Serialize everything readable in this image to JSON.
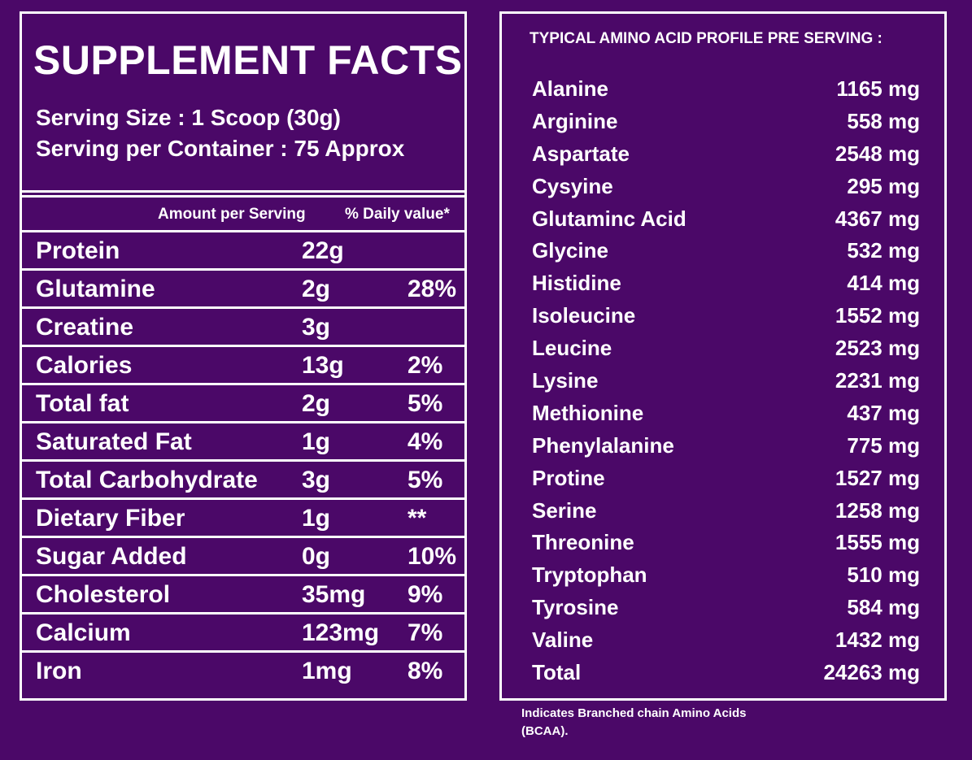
{
  "supplement": {
    "title": "SUPPLEMENT FACTS",
    "serving_size": "Serving Size : 1 Scoop (30g)",
    "serving_per_container": "Serving per Container : 75 Approx",
    "col_amount": "Amount per Serving",
    "col_daily": "% Daily value*",
    "rows": [
      {
        "name": "Protein",
        "amount": "22g",
        "daily": ""
      },
      {
        "name": "Glutamine",
        "amount": "2g",
        "daily": "28%"
      },
      {
        "name": "Creatine",
        "amount": "3g",
        "daily": ""
      },
      {
        "name": "Calories",
        "amount": "13g",
        "daily": "2%"
      },
      {
        "name": "Total fat",
        "amount": "2g",
        "daily": "5%"
      },
      {
        "name": "Saturated Fat",
        "amount": "1g",
        "daily": "4%"
      },
      {
        "name": "Total Carbohydrate",
        "amount": "3g",
        "daily": "5%"
      },
      {
        "name": "Dietary Fiber",
        "amount": "1g",
        "daily": "**"
      },
      {
        "name": "Sugar Added",
        "amount": "0g",
        "daily": "10%"
      },
      {
        "name": "Cholesterol",
        "amount": "35mg",
        "daily": "9%"
      },
      {
        "name": "Calcium",
        "amount": "123mg",
        "daily": "7%"
      },
      {
        "name": "Iron",
        "amount": "1mg",
        "daily": "8%"
      }
    ]
  },
  "amino": {
    "title": "TYPICAL AMINO ACID PROFILE PRE SERVING :",
    "rows": [
      {
        "name": "Alanine",
        "value": "1165 mg"
      },
      {
        "name": "Arginine",
        "value": "558 mg"
      },
      {
        "name": "Aspartate",
        "value": "2548 mg"
      },
      {
        "name": "Cysyine",
        "value": "295 mg"
      },
      {
        "name": "Glutaminc Acid",
        "value": "4367 mg"
      },
      {
        "name": "Glycine",
        "value": "532 mg"
      },
      {
        "name": "Histidine",
        "value": "414 mg"
      },
      {
        "name": "Isoleucine",
        "value": "1552 mg"
      },
      {
        "name": "Leucine",
        "value": "2523 mg"
      },
      {
        "name": "Lysine",
        "value": "2231 mg"
      },
      {
        "name": "Methionine",
        "value": "437 mg"
      },
      {
        "name": "Phenylalanine",
        "value": "775 mg"
      },
      {
        "name": "Protine",
        "value": "1527 mg"
      },
      {
        "name": "Serine",
        "value": "1258 mg"
      },
      {
        "name": "Threonine",
        "value": "1555 mg"
      },
      {
        "name": "Tryptophan",
        "value": "510 mg"
      },
      {
        "name": "Tyrosine",
        "value": "584 mg"
      },
      {
        "name": "Valine",
        "value": "1432 mg"
      },
      {
        "name": "Total",
        "value": "24263 mg"
      }
    ]
  },
  "note": "Indicates Branched chain Amino Acids (BCAA).",
  "colors": {
    "background": "#4b0868",
    "text": "#ffffff",
    "border": "#ffffff"
  }
}
